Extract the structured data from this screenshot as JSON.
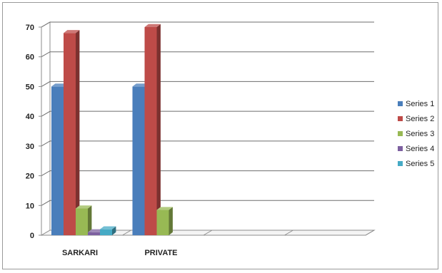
{
  "chart_data": {
    "type": "bar",
    "style": "3d-clustered-column",
    "categories": [
      "SARKARI",
      "PRIVATE",
      "",
      ""
    ],
    "series": [
      {
        "name": "Series 1",
        "color": "#4a7ebb",
        "values": [
          50,
          50,
          null,
          null
        ]
      },
      {
        "name": "Series 2",
        "color": "#be4b48",
        "values": [
          68,
          70,
          null,
          null
        ]
      },
      {
        "name": "Series 3",
        "color": "#98b954",
        "values": [
          9,
          8.5,
          null,
          null
        ]
      },
      {
        "name": "Series 4",
        "color": "#7d60a0",
        "values": [
          1,
          null,
          null,
          null
        ]
      },
      {
        "name": "Series 5",
        "color": "#46aac5",
        "values": [
          2,
          null,
          null,
          null
        ]
      }
    ],
    "ylim": [
      0,
      70
    ],
    "yticks": [
      "0",
      "10",
      "20",
      "30",
      "40",
      "50",
      "60",
      "70"
    ],
    "grid": true,
    "legend_position": "right"
  }
}
